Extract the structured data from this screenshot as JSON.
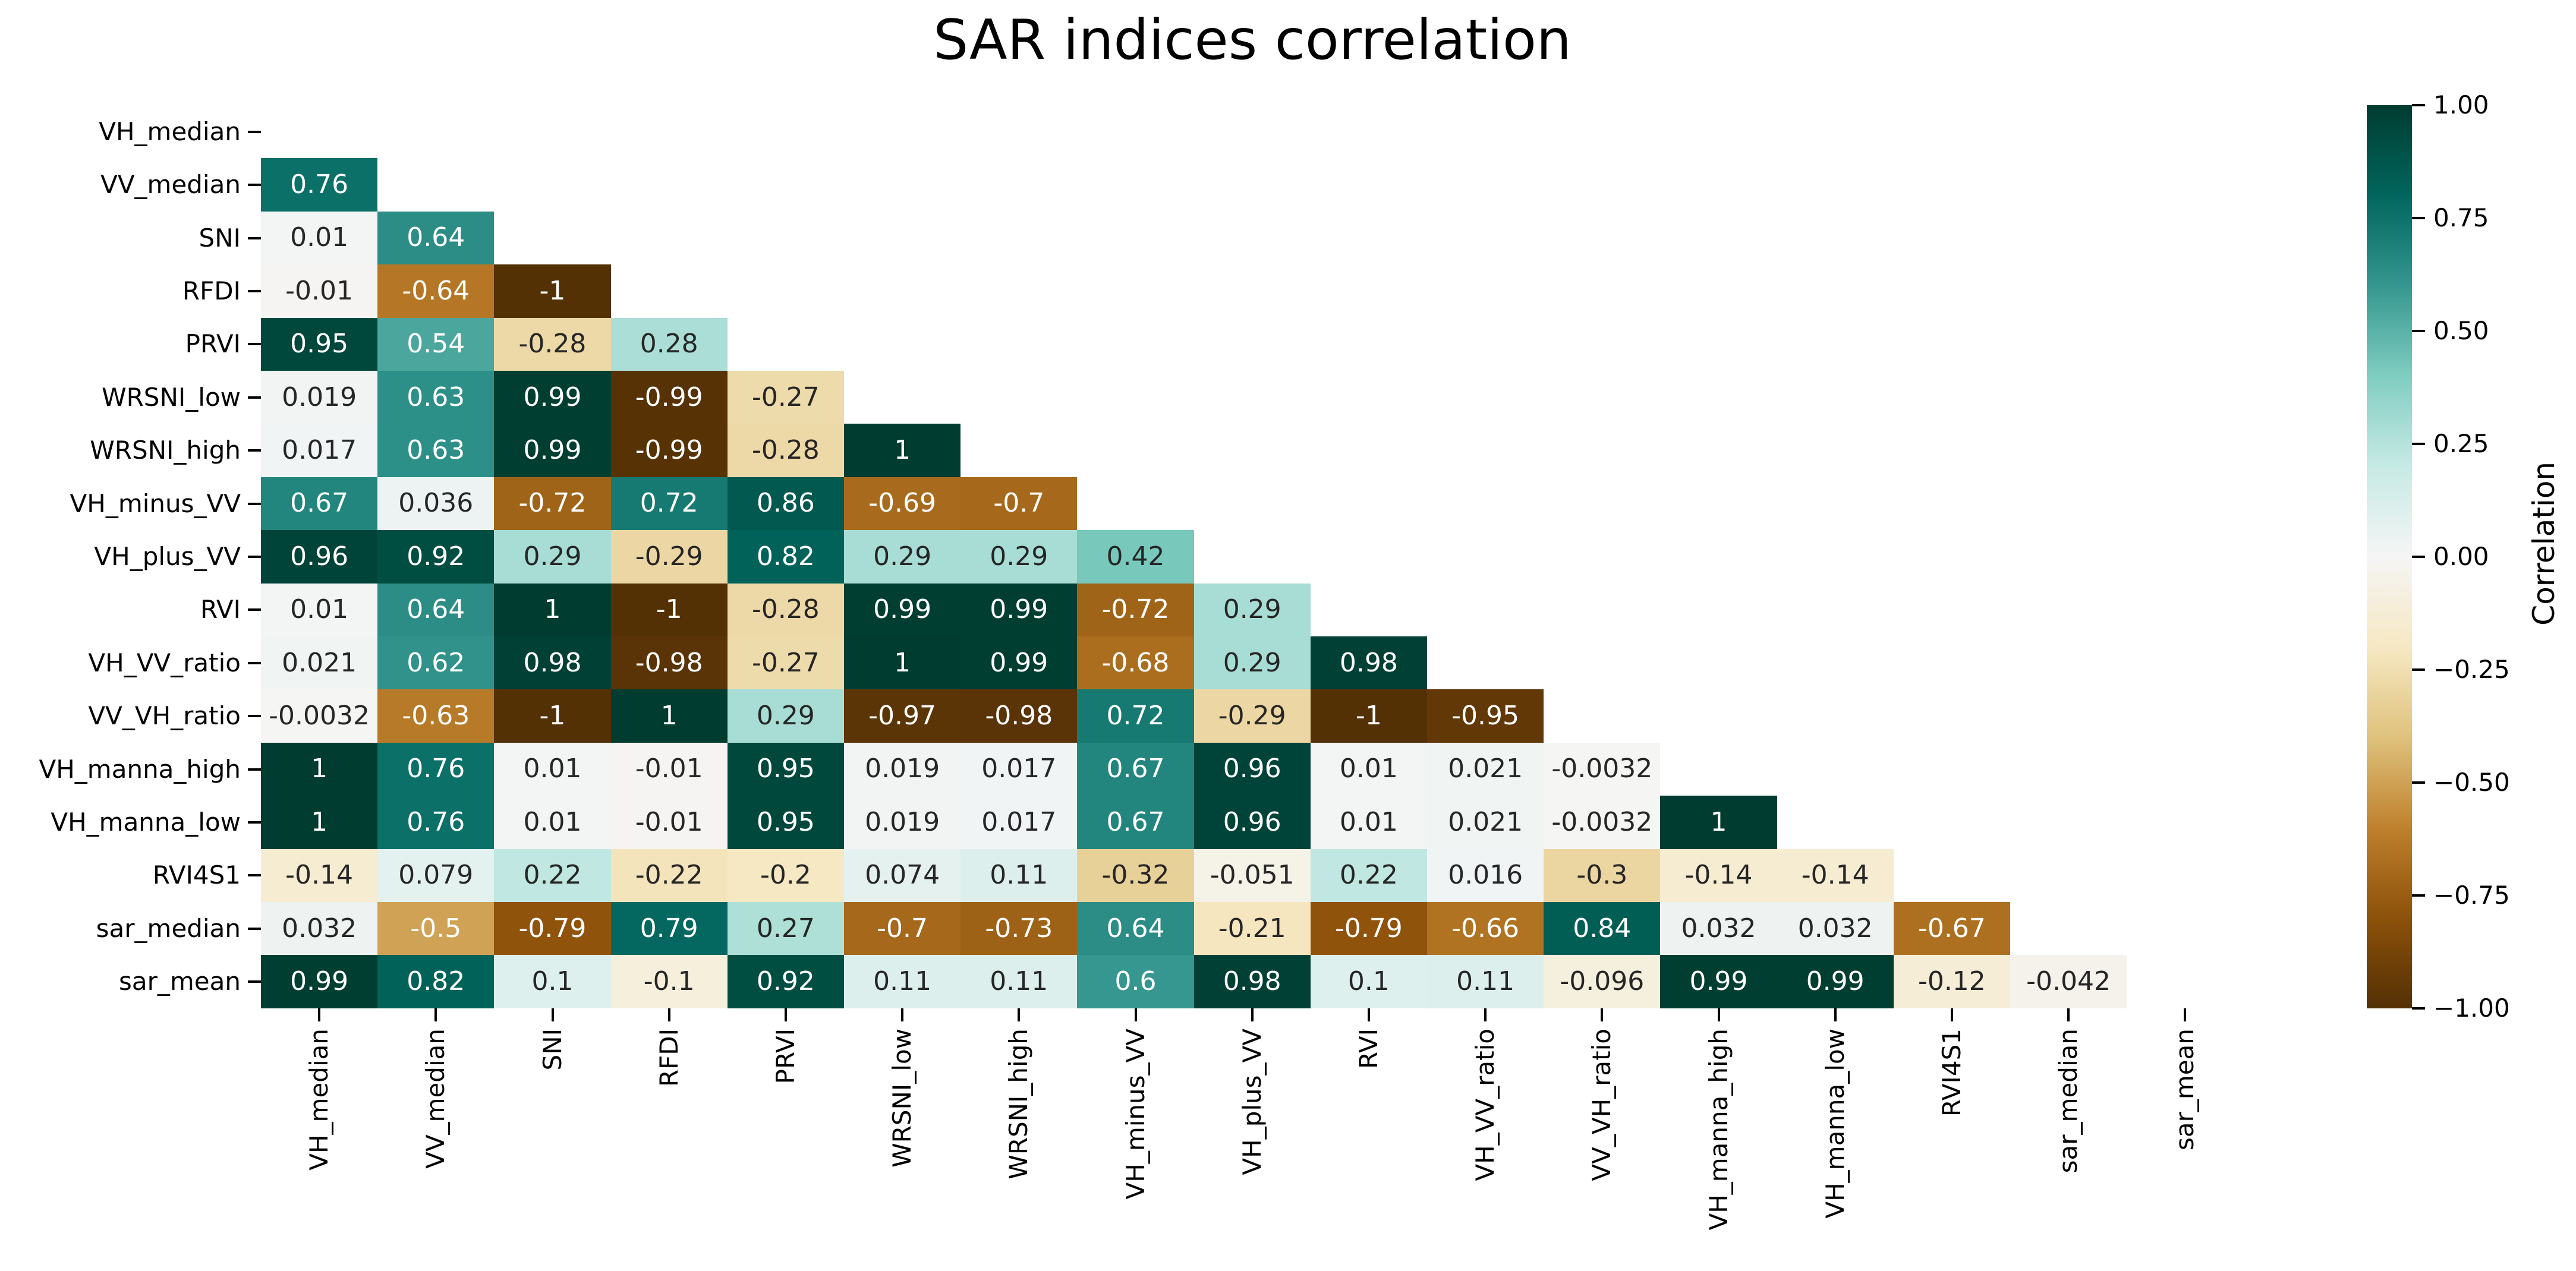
{
  "title": "SAR indices correlation",
  "chart_data": {
    "type": "heatmap",
    "title": "SAR indices correlation",
    "labels": [
      "VH_median",
      "VV_median",
      "SNI",
      "RFDI",
      "PRVI",
      "WRSNI_low",
      "WRSNI_high",
      "VH_minus_VV",
      "VH_plus_VV",
      "RVI",
      "VH_VV_ratio",
      "VV_VH_ratio",
      "VH_manna_high",
      "VH_manna_low",
      "RVI4S1",
      "sar_median",
      "sar_mean"
    ],
    "matrix_lower_triangle": [
      [],
      [
        0.76
      ],
      [
        0.01,
        0.64
      ],
      [
        -0.01,
        -0.64,
        -1
      ],
      [
        0.95,
        0.54,
        -0.28,
        0.28
      ],
      [
        0.019,
        0.63,
        0.99,
        -0.99,
        -0.27
      ],
      [
        0.017,
        0.63,
        0.99,
        -0.99,
        -0.28,
        1
      ],
      [
        0.67,
        0.036,
        -0.72,
        0.72,
        0.86,
        -0.69,
        -0.7
      ],
      [
        0.96,
        0.92,
        0.29,
        -0.29,
        0.82,
        0.29,
        0.29,
        0.42
      ],
      [
        0.01,
        0.64,
        1,
        -1,
        -0.28,
        0.99,
        0.99,
        -0.72,
        0.29
      ],
      [
        0.021,
        0.62,
        0.98,
        -0.98,
        -0.27,
        1,
        0.99,
        -0.68,
        0.29,
        0.98
      ],
      [
        -0.0032,
        -0.63,
        -1,
        1,
        0.29,
        -0.97,
        -0.98,
        0.72,
        -0.29,
        -1,
        -0.95
      ],
      [
        1,
        0.76,
        0.01,
        -0.01,
        0.95,
        0.019,
        0.017,
        0.67,
        0.96,
        0.01,
        0.021,
        -0.0032
      ],
      [
        1,
        0.76,
        0.01,
        -0.01,
        0.95,
        0.019,
        0.017,
        0.67,
        0.96,
        0.01,
        0.021,
        -0.0032,
        1
      ],
      [
        -0.14,
        0.079,
        0.22,
        -0.22,
        -0.2,
        0.074,
        0.11,
        -0.32,
        -0.051,
        0.22,
        0.016,
        -0.3,
        -0.14,
        -0.14
      ],
      [
        0.032,
        -0.5,
        -0.79,
        0.79,
        0.27,
        -0.7,
        -0.73,
        0.64,
        -0.21,
        -0.79,
        -0.66,
        0.84,
        0.032,
        0.032,
        -0.67
      ],
      [
        0.99,
        0.82,
        0.1,
        -0.1,
        0.92,
        0.11,
        0.11,
        0.6,
        0.98,
        0.1,
        0.11,
        -0.096,
        0.99,
        0.99,
        -0.12,
        -0.042
      ]
    ],
    "mask": "upper triangle and diagonal hidden",
    "value_format": "2 significant digits",
    "vmin": -1,
    "vmax": 1,
    "grid": false,
    "colormap": {
      "name": "BrBG",
      "anchors": [
        "#543005",
        "#8c510a",
        "#bf812d",
        "#dfc27d",
        "#f6e8c3",
        "#f5f5f5",
        "#c7eae5",
        "#80cdc1",
        "#35978f",
        "#01665e",
        "#003c30"
      ]
    },
    "annotation_text_colors": {
      "on_dark_cells": "#ffffff",
      "on_light_cells": "#262626"
    },
    "colorbar": {
      "label": "Correlation",
      "ticks": [
        "1.00",
        "0.75",
        "0.50",
        "0.25",
        "0.00",
        "−0.25",
        "−0.50",
        "−0.75",
        "−1.00"
      ],
      "position": "right"
    }
  }
}
